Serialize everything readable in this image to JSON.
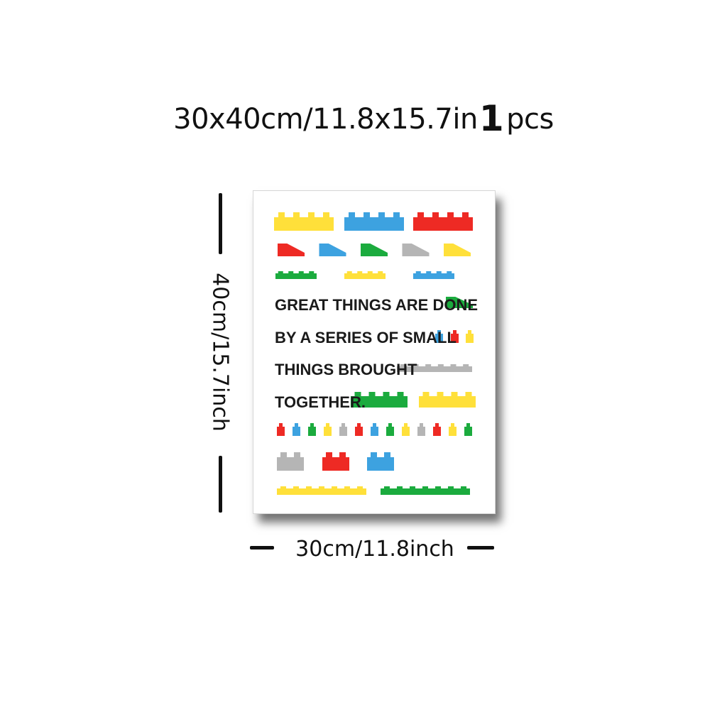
{
  "headline": {
    "size_text": "30x40cm/11.8x15.7in",
    "quantity": "1",
    "unit": "pcs"
  },
  "poster": {
    "quote_lines": [
      "GREAT THINGS ARE DONE",
      "BY A SERIES OF SMALL",
      "THINGS BROUGHT",
      "TOGETHER."
    ],
    "colors": {
      "yellow": "#FFE03A",
      "blue": "#3DA2E0",
      "red": "#EE2A24",
      "green": "#1BAB3E",
      "gray": "#B5B5B5"
    }
  },
  "dimensions": {
    "width_label": "30cm/11.8inch",
    "height_label": "40cm/15.7inch"
  }
}
